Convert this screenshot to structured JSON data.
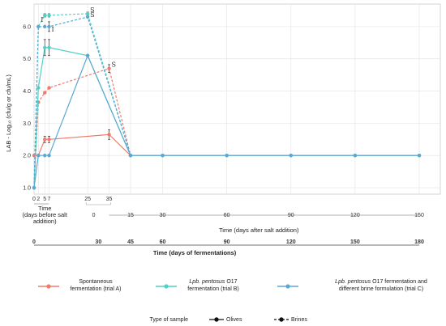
{
  "chart_data": {
    "type": "line",
    "ylabel": "LAB - Log₁₀ (cfu/g or cfu/mL)",
    "yticks": [
      "1.0",
      "2.0",
      "3.0",
      "4.0",
      "5.0",
      "6.0"
    ],
    "ylim": [
      0.8,
      6.7
    ],
    "grid": true,
    "axis_before": {
      "label": "Time\n(days before salt\naddition)",
      "label_lines": [
        "Time",
        "(days before salt",
        "addition)"
      ],
      "ticks": [
        0,
        2,
        5,
        7,
        25,
        35
      ],
      "tick_labels": [
        "0",
        "2",
        "5",
        "7",
        "25",
        "35"
      ]
    },
    "axis_after": {
      "label": "Time (days after salt addition)",
      "ticks": [
        0,
        15,
        30,
        60,
        90,
        120,
        150
      ],
      "tick_labels": [
        "0",
        "15",
        "30",
        "60",
        "90",
        "120",
        "150"
      ]
    },
    "axis_total": {
      "label": "Time (days of fermentations)",
      "ticks": [
        0,
        30,
        45,
        60,
        90,
        120,
        150,
        180
      ],
      "tick_labels": [
        "0",
        "30",
        "45",
        "60",
        "90",
        "120",
        "150",
        "180"
      ]
    },
    "series": [
      {
        "name": "Spontaneous fermentation (trial A)",
        "sample": "Olives",
        "color": "#f07b6b",
        "style": "solid",
        "x": [
          0,
          2,
          5,
          7,
          35,
          45,
          60,
          90,
          120,
          150,
          180
        ],
        "y": [
          2.0,
          2.0,
          2.5,
          2.5,
          2.65,
          2.0,
          2.0,
          2.0,
          2.0,
          2.0,
          2.0
        ],
        "err": [
          0,
          0,
          0.1,
          0.1,
          0.15,
          0,
          0,
          0,
          0,
          0,
          0
        ]
      },
      {
        "name": "Spontaneous fermentation (trial A)",
        "sample": "Brines",
        "color": "#f07b6b",
        "style": "dashed",
        "x": [
          0,
          2,
          5,
          7,
          35,
          45
        ],
        "y": [
          1.0,
          3.65,
          3.95,
          4.1,
          4.7,
          2.0
        ],
        "err": [
          0,
          0,
          0,
          0,
          0.12,
          0
        ]
      },
      {
        "name": "Lpb. pentosus O17 fermentation (trial B)",
        "sample": "Olives",
        "color": "#4fd1c5",
        "style": "solid",
        "x": [
          0,
          2,
          5,
          7,
          25,
          45,
          60,
          90,
          120,
          150,
          180
        ],
        "y": [
          1.0,
          4.1,
          5.35,
          5.35,
          5.1,
          2.0,
          2.0,
          2.0,
          2.0,
          2.0,
          2.0
        ],
        "err": [
          0,
          0,
          0.25,
          0.25,
          0,
          0,
          0,
          0,
          0,
          0,
          0
        ]
      },
      {
        "name": "Lpb. pentosus O17 fermentation (trial B)",
        "sample": "Brines",
        "color": "#4fd1c5",
        "style": "dashed",
        "x": [
          0,
          2,
          5,
          7,
          25,
          45
        ],
        "y": [
          1.0,
          6.0,
          6.35,
          6.35,
          6.4,
          2.0
        ],
        "err": [
          0,
          0,
          0.05,
          0.05,
          0.05,
          0
        ]
      },
      {
        "name": "Lpb. pentosus O17 fermentation and different brine formulation (trial C)",
        "sample": "Olives",
        "color": "#5ba8d4",
        "style": "solid",
        "x": [
          0,
          2,
          5,
          7,
          25,
          45,
          60,
          90,
          120,
          150,
          180
        ],
        "y": [
          1.0,
          2.0,
          2.0,
          2.0,
          5.1,
          2.0,
          2.0,
          2.0,
          2.0,
          2.0,
          2.0
        ],
        "err": [
          0,
          0,
          0,
          0,
          0,
          0,
          0,
          0,
          0,
          0,
          0
        ]
      },
      {
        "name": "Lpb. pentosus O17 fermentation and different brine formulation (trial C)",
        "sample": "Brines",
        "color": "#5ba8d4",
        "style": "dashed",
        "x": [
          0,
          2,
          5,
          7,
          25,
          45
        ],
        "y": [
          1.0,
          6.0,
          6.0,
          6.0,
          6.3,
          2.0
        ],
        "err": [
          0,
          0,
          0,
          0.15,
          0,
          0
        ]
      }
    ],
    "annotations": [
      {
        "text": "I",
        "x": 2,
        "y": 6.15
      },
      {
        "text": "I",
        "x": 7,
        "y": 5.85
      },
      {
        "text": "S",
        "x": 25,
        "y": 6.45
      },
      {
        "text": "S",
        "x": 25,
        "y": 6.3
      },
      {
        "text": "S",
        "x": 35,
        "y": 4.75
      }
    ],
    "legend": {
      "entries": [
        {
          "label": "Spontaneous\nfermentation (trial A)",
          "label_lines": [
            "Spontaneous",
            "fermentation (trial A)"
          ],
          "color": "#f07b6b",
          "italic_prefix": ""
        },
        {
          "label": "Lpb. pentosus O17\nfermentation (trial B)",
          "label_lines": [
            "Lpb. pentosus O17",
            "fermentation (trial B)"
          ],
          "color": "#4fd1c5",
          "italic_prefix": "Lpb. pentosus"
        },
        {
          "label": "Lpb. pentosus O17 fermentation and\ndifferent brine formulation (trial C)",
          "label_lines": [
            "Lpb. pentosus O17 fermentation and",
            "different brine formulation (trial C)"
          ],
          "color": "#5ba8d4",
          "italic_prefix": "Lpb. pentosus"
        }
      ],
      "type_title": "Type of sample",
      "types": [
        {
          "label": "Olives",
          "style": "solid"
        },
        {
          "label": "Brines",
          "style": "dashed"
        }
      ]
    }
  }
}
